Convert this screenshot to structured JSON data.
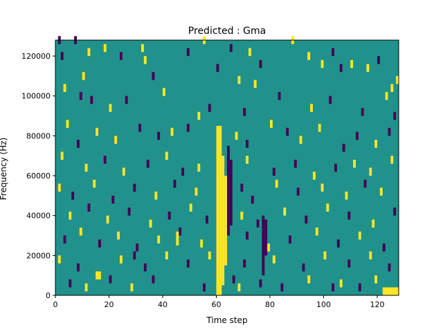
{
  "chart_data": {
    "type": "heatmap",
    "title": "Predicted : Gma",
    "xlabel": "Time step",
    "ylabel": "Frequency (Hz)",
    "xlim": [
      0,
      128
    ],
    "ylim": [
      0,
      128000
    ],
    "xticks": [
      "0",
      "20",
      "40",
      "60",
      "80",
      "100",
      "120"
    ],
    "yticks": [
      "0",
      "20000",
      "40000",
      "60000",
      "80000",
      "100000",
      "120000"
    ],
    "grid": false,
    "legend": "none",
    "colors": {
      "background": "#21918c",
      "high": "#fde725",
      "low": "#440154"
    },
    "bands": [
      {
        "x": 60,
        "w": 1,
        "y0": 0,
        "y1": 85000,
        "kind": "high"
      },
      {
        "x": 61,
        "w": 1,
        "y0": 0,
        "y1": 85000,
        "kind": "high"
      },
      {
        "x": 62,
        "w": 1,
        "y0": 5000,
        "y1": 70000,
        "kind": "high"
      },
      {
        "x": 63,
        "w": 1,
        "y0": 15000,
        "y1": 60000,
        "kind": "high"
      },
      {
        "x": 64,
        "w": 1,
        "y0": 30000,
        "y1": 75000,
        "kind": "low"
      },
      {
        "x": 65,
        "w": 1,
        "y0": 35000,
        "y1": 68000,
        "kind": "low"
      },
      {
        "x": 77,
        "w": 1,
        "y0": 10000,
        "y1": 40000,
        "kind": "low"
      },
      {
        "x": 78,
        "w": 1,
        "y0": 20000,
        "y1": 38000,
        "kind": "low"
      },
      {
        "x": 122,
        "w": 6,
        "y0": 0,
        "y1": 4000,
        "kind": "high"
      },
      {
        "x": 15,
        "w": 2,
        "y0": 8000,
        "y1": 12000,
        "kind": "high"
      },
      {
        "x": 29,
        "w": 1,
        "y0": 18000,
        "y1": 22000,
        "kind": "low"
      },
      {
        "x": 45,
        "w": 1,
        "y0": 25000,
        "y1": 32000,
        "kind": "high"
      }
    ],
    "cells": [
      {
        "x": 1,
        "y": 126000,
        "kind": "low"
      },
      {
        "x": 2,
        "y": 118000,
        "kind": "low"
      },
      {
        "x": 7,
        "y": 126000,
        "kind": "low"
      },
      {
        "x": 10,
        "y": 108000,
        "kind": "high"
      },
      {
        "x": 12,
        "y": 120000,
        "kind": "high"
      },
      {
        "x": 18,
        "y": 122000,
        "kind": "high"
      },
      {
        "x": 24,
        "y": 118000,
        "kind": "low"
      },
      {
        "x": 32,
        "y": 122000,
        "kind": "high"
      },
      {
        "x": 33,
        "y": 116000,
        "kind": "high"
      },
      {
        "x": 36,
        "y": 108000,
        "kind": "low"
      },
      {
        "x": 49,
        "y": 120000,
        "kind": "low"
      },
      {
        "x": 55,
        "y": 126000,
        "kind": "high"
      },
      {
        "x": 60,
        "y": 112000,
        "kind": "low"
      },
      {
        "x": 65,
        "y": 122000,
        "kind": "low"
      },
      {
        "x": 68,
        "y": 106000,
        "kind": "high"
      },
      {
        "x": 72,
        "y": 120000,
        "kind": "high"
      },
      {
        "x": 76,
        "y": 114000,
        "kind": "low"
      },
      {
        "x": 88,
        "y": 126000,
        "kind": "high"
      },
      {
        "x": 94,
        "y": 118000,
        "kind": "high"
      },
      {
        "x": 99,
        "y": 114000,
        "kind": "high"
      },
      {
        "x": 103,
        "y": 120000,
        "kind": "low"
      },
      {
        "x": 106,
        "y": 112000,
        "kind": "low"
      },
      {
        "x": 110,
        "y": 114000,
        "kind": "high"
      },
      {
        "x": 116,
        "y": 112000,
        "kind": "high"
      },
      {
        "x": 120,
        "y": 116000,
        "kind": "low"
      },
      {
        "x": 125,
        "y": 102000,
        "kind": "high"
      },
      {
        "x": 127,
        "y": 106000,
        "kind": "high"
      },
      {
        "x": 3,
        "y": 102000,
        "kind": "high"
      },
      {
        "x": 9,
        "y": 98000,
        "kind": "low"
      },
      {
        "x": 13,
        "y": 96000,
        "kind": "low"
      },
      {
        "x": 20,
        "y": 92000,
        "kind": "high"
      },
      {
        "x": 26,
        "y": 96000,
        "kind": "low"
      },
      {
        "x": 40,
        "y": 100000,
        "kind": "high"
      },
      {
        "x": 53,
        "y": 88000,
        "kind": "high"
      },
      {
        "x": 57,
        "y": 92000,
        "kind": "low"
      },
      {
        "x": 70,
        "y": 90000,
        "kind": "low"
      },
      {
        "x": 74,
        "y": 104000,
        "kind": "high"
      },
      {
        "x": 83,
        "y": 98000,
        "kind": "low"
      },
      {
        "x": 95,
        "y": 92000,
        "kind": "high"
      },
      {
        "x": 102,
        "y": 96000,
        "kind": "low"
      },
      {
        "x": 114,
        "y": 90000,
        "kind": "low"
      },
      {
        "x": 123,
        "y": 98000,
        "kind": "high"
      },
      {
        "x": 126,
        "y": 88000,
        "kind": "low"
      },
      {
        "x": 4,
        "y": 84000,
        "kind": "high"
      },
      {
        "x": 8,
        "y": 74000,
        "kind": "low"
      },
      {
        "x": 15,
        "y": 80000,
        "kind": "high"
      },
      {
        "x": 22,
        "y": 76000,
        "kind": "high"
      },
      {
        "x": 31,
        "y": 82000,
        "kind": "low"
      },
      {
        "x": 38,
        "y": 78000,
        "kind": "low"
      },
      {
        "x": 43,
        "y": 80000,
        "kind": "high"
      },
      {
        "x": 49,
        "y": 82000,
        "kind": "low"
      },
      {
        "x": 67,
        "y": 78000,
        "kind": "high"
      },
      {
        "x": 71,
        "y": 74000,
        "kind": "low"
      },
      {
        "x": 80,
        "y": 84000,
        "kind": "high"
      },
      {
        "x": 86,
        "y": 80000,
        "kind": "low"
      },
      {
        "x": 91,
        "y": 76000,
        "kind": "high"
      },
      {
        "x": 98,
        "y": 82000,
        "kind": "high"
      },
      {
        "x": 107,
        "y": 72000,
        "kind": "low"
      },
      {
        "x": 112,
        "y": 78000,
        "kind": "low"
      },
      {
        "x": 119,
        "y": 74000,
        "kind": "high"
      },
      {
        "x": 124,
        "y": 80000,
        "kind": "low"
      },
      {
        "x": 2,
        "y": 68000,
        "kind": "high"
      },
      {
        "x": 11,
        "y": 62000,
        "kind": "high"
      },
      {
        "x": 18,
        "y": 66000,
        "kind": "low"
      },
      {
        "x": 25,
        "y": 60000,
        "kind": "high"
      },
      {
        "x": 34,
        "y": 64000,
        "kind": "low"
      },
      {
        "x": 41,
        "y": 68000,
        "kind": "high"
      },
      {
        "x": 47,
        "y": 60000,
        "kind": "low"
      },
      {
        "x": 53,
        "y": 62000,
        "kind": "high"
      },
      {
        "x": 71,
        "y": 66000,
        "kind": "high"
      },
      {
        "x": 81,
        "y": 60000,
        "kind": "low"
      },
      {
        "x": 89,
        "y": 64000,
        "kind": "low"
      },
      {
        "x": 96,
        "y": 58000,
        "kind": "high"
      },
      {
        "x": 104,
        "y": 62000,
        "kind": "low"
      },
      {
        "x": 111,
        "y": 64000,
        "kind": "high"
      },
      {
        "x": 117,
        "y": 60000,
        "kind": "high"
      },
      {
        "x": 125,
        "y": 66000,
        "kind": "high"
      },
      {
        "x": 1,
        "y": 52000,
        "kind": "high"
      },
      {
        "x": 6,
        "y": 48000,
        "kind": "low"
      },
      {
        "x": 14,
        "y": 54000,
        "kind": "high"
      },
      {
        "x": 21,
        "y": 46000,
        "kind": "low"
      },
      {
        "x": 29,
        "y": 52000,
        "kind": "low"
      },
      {
        "x": 37,
        "y": 48000,
        "kind": "high"
      },
      {
        "x": 44,
        "y": 54000,
        "kind": "low"
      },
      {
        "x": 52,
        "y": 50000,
        "kind": "high"
      },
      {
        "x": 69,
        "y": 52000,
        "kind": "low"
      },
      {
        "x": 73,
        "y": 46000,
        "kind": "low"
      },
      {
        "x": 82,
        "y": 54000,
        "kind": "high"
      },
      {
        "x": 90,
        "y": 50000,
        "kind": "low"
      },
      {
        "x": 99,
        "y": 52000,
        "kind": "high"
      },
      {
        "x": 108,
        "y": 48000,
        "kind": "high"
      },
      {
        "x": 115,
        "y": 54000,
        "kind": "low"
      },
      {
        "x": 121,
        "y": 50000,
        "kind": "high"
      },
      {
        "x": 5,
        "y": 38000,
        "kind": "high"
      },
      {
        "x": 12,
        "y": 42000,
        "kind": "low"
      },
      {
        "x": 19,
        "y": 36000,
        "kind": "high"
      },
      {
        "x": 27,
        "y": 40000,
        "kind": "low"
      },
      {
        "x": 35,
        "y": 34000,
        "kind": "high"
      },
      {
        "x": 42,
        "y": 38000,
        "kind": "low"
      },
      {
        "x": 50,
        "y": 42000,
        "kind": "high"
      },
      {
        "x": 56,
        "y": 36000,
        "kind": "low"
      },
      {
        "x": 69,
        "y": 38000,
        "kind": "high"
      },
      {
        "x": 75,
        "y": 34000,
        "kind": "low"
      },
      {
        "x": 85,
        "y": 40000,
        "kind": "high"
      },
      {
        "x": 93,
        "y": 36000,
        "kind": "low"
      },
      {
        "x": 101,
        "y": 42000,
        "kind": "high"
      },
      {
        "x": 109,
        "y": 38000,
        "kind": "low"
      },
      {
        "x": 118,
        "y": 34000,
        "kind": "high"
      },
      {
        "x": 126,
        "y": 40000,
        "kind": "low"
      },
      {
        "x": 3,
        "y": 26000,
        "kind": "low"
      },
      {
        "x": 9,
        "y": 30000,
        "kind": "high"
      },
      {
        "x": 16,
        "y": 24000,
        "kind": "low"
      },
      {
        "x": 23,
        "y": 28000,
        "kind": "high"
      },
      {
        "x": 30,
        "y": 22000,
        "kind": "low"
      },
      {
        "x": 38,
        "y": 26000,
        "kind": "high"
      },
      {
        "x": 46,
        "y": 30000,
        "kind": "low"
      },
      {
        "x": 54,
        "y": 24000,
        "kind": "high"
      },
      {
        "x": 71,
        "y": 28000,
        "kind": "low"
      },
      {
        "x": 79,
        "y": 22000,
        "kind": "high"
      },
      {
        "x": 87,
        "y": 26000,
        "kind": "low"
      },
      {
        "x": 97,
        "y": 30000,
        "kind": "high"
      },
      {
        "x": 105,
        "y": 24000,
        "kind": "low"
      },
      {
        "x": 113,
        "y": 28000,
        "kind": "high"
      },
      {
        "x": 122,
        "y": 22000,
        "kind": "low"
      },
      {
        "x": 1,
        "y": 16000,
        "kind": "high"
      },
      {
        "x": 8,
        "y": 12000,
        "kind": "low"
      },
      {
        "x": 24,
        "y": 16000,
        "kind": "high"
      },
      {
        "x": 33,
        "y": 12000,
        "kind": "low"
      },
      {
        "x": 41,
        "y": 18000,
        "kind": "high"
      },
      {
        "x": 49,
        "y": 14000,
        "kind": "low"
      },
      {
        "x": 57,
        "y": 18000,
        "kind": "high"
      },
      {
        "x": 70,
        "y": 14000,
        "kind": "low"
      },
      {
        "x": 81,
        "y": 16000,
        "kind": "high"
      },
      {
        "x": 92,
        "y": 12000,
        "kind": "low"
      },
      {
        "x": 100,
        "y": 18000,
        "kind": "high"
      },
      {
        "x": 109,
        "y": 14000,
        "kind": "low"
      },
      {
        "x": 117,
        "y": 18000,
        "kind": "high"
      },
      {
        "x": 124,
        "y": 12000,
        "kind": "low"
      },
      {
        "x": 5,
        "y": 4000,
        "kind": "low"
      },
      {
        "x": 11,
        "y": 2000,
        "kind": "high"
      },
      {
        "x": 20,
        "y": 6000,
        "kind": "low"
      },
      {
        "x": 28,
        "y": 2000,
        "kind": "high"
      },
      {
        "x": 36,
        "y": 6000,
        "kind": "low"
      },
      {
        "x": 55,
        "y": 2000,
        "kind": "low"
      },
      {
        "x": 66,
        "y": 6000,
        "kind": "low"
      },
      {
        "x": 68,
        "y": 2000,
        "kind": "high"
      },
      {
        "x": 76,
        "y": 4000,
        "kind": "low"
      },
      {
        "x": 84,
        "y": 2000,
        "kind": "low"
      },
      {
        "x": 94,
        "y": 6000,
        "kind": "high"
      },
      {
        "x": 103,
        "y": 2000,
        "kind": "low"
      },
      {
        "x": 106,
        "y": 4000,
        "kind": "high"
      },
      {
        "x": 113,
        "y": 2000,
        "kind": "low"
      },
      {
        "x": 119,
        "y": 6000,
        "kind": "high"
      }
    ]
  }
}
